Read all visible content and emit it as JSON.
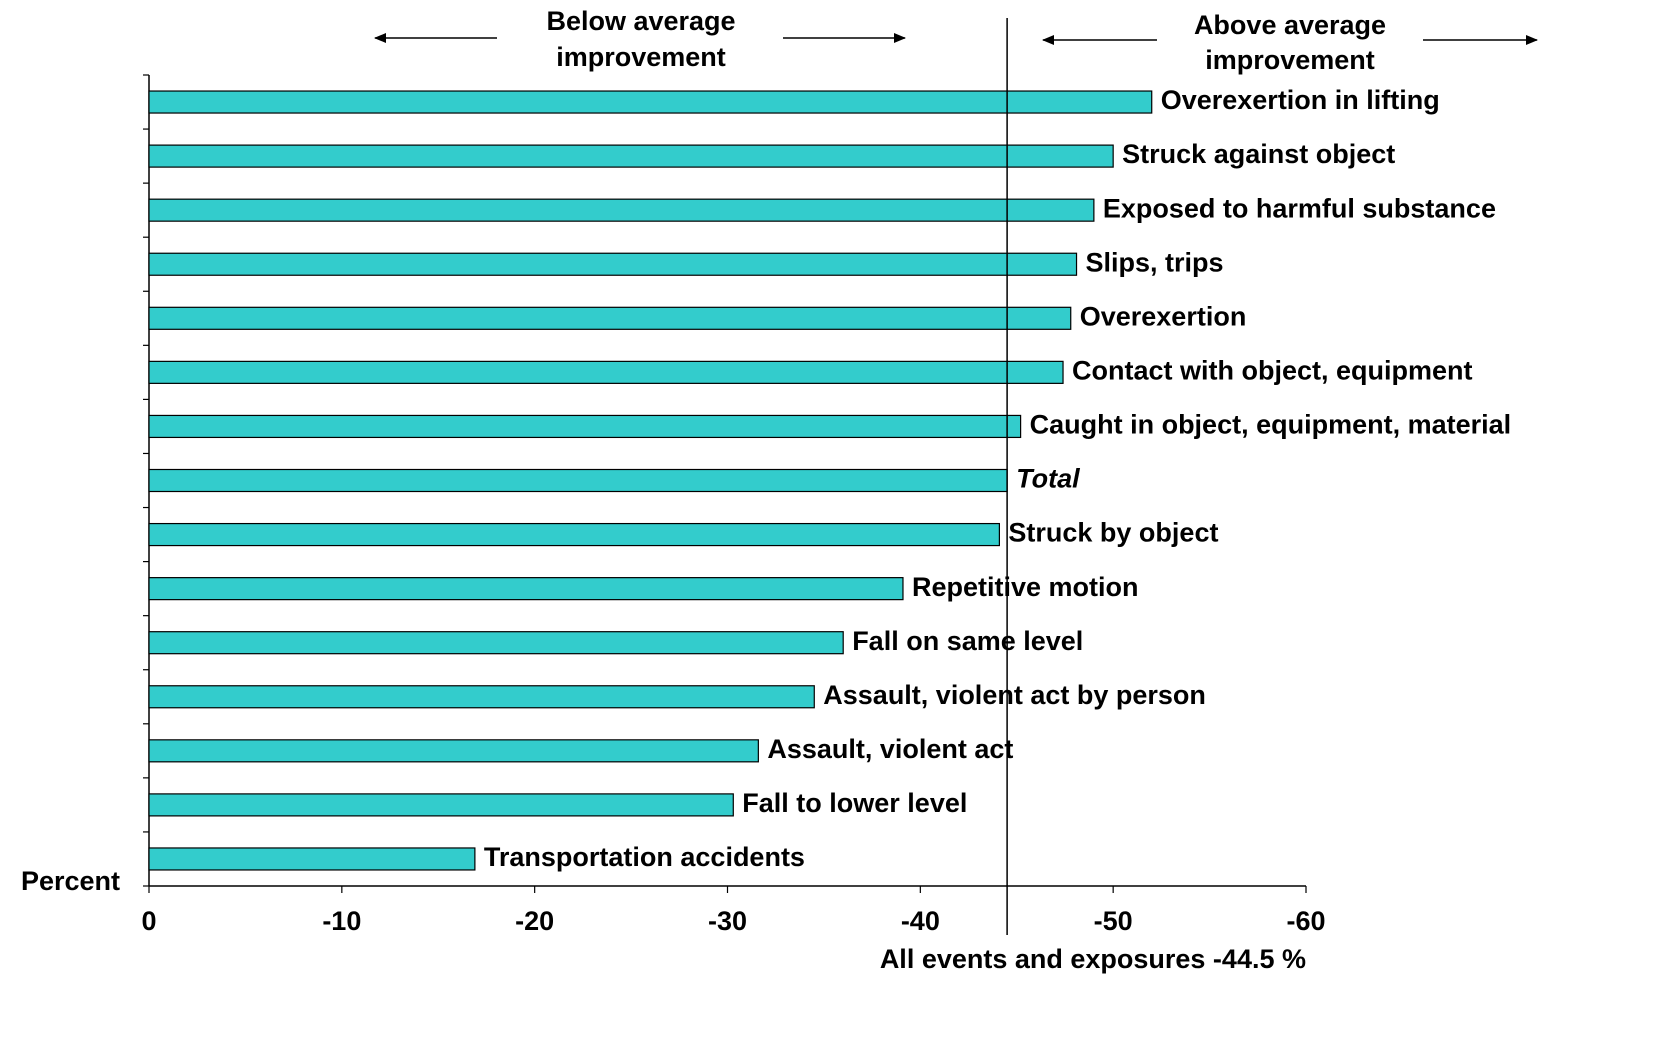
{
  "chart_data": {
    "type": "bar",
    "orientation": "horizontal",
    "categories": [
      "Overexertion in lifting",
      "Struck against object",
      "Exposed to harmful substance",
      "Slips, trips",
      "Overexertion",
      "Contact with object, equipment",
      "Caught in object, equipment, material",
      "Total",
      "Struck by object",
      "Repetitive motion",
      "Fall on same level",
      "Assault, violent act by person",
      "Assault, violent act",
      "Fall to lower level",
      "Transportation accidents"
    ],
    "values": [
      -52,
      -50,
      -49,
      -48.1,
      -47.8,
      -47.4,
      -45.2,
      -44.5,
      -44.1,
      -39.1,
      -36,
      -34.5,
      -31.6,
      -30.3,
      -16.9
    ],
    "color": "#33cccc",
    "xlim": [
      0,
      -60
    ],
    "xticks": [
      0,
      -10,
      -20,
      -30,
      -40,
      -50,
      -60
    ],
    "ylabel": "Percent",
    "reference_line": {
      "value": -44.5,
      "label": "All events and exposures -44.5 %"
    },
    "annotations": [
      {
        "lines": [
          "Below average",
          "improvement"
        ]
      },
      {
        "lines": [
          "Above average",
          "improvement"
        ]
      }
    ]
  }
}
